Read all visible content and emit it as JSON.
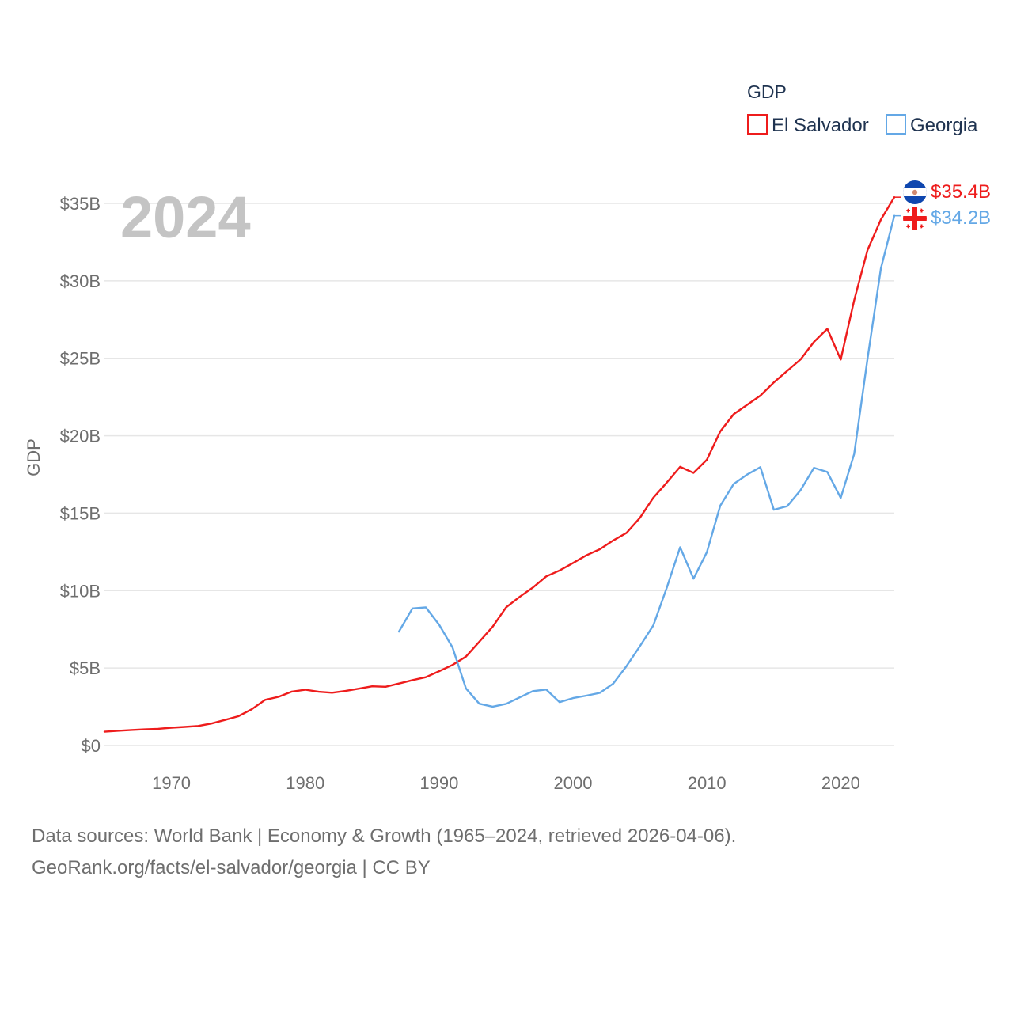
{
  "colors": {
    "el_salvador": "#ee1c1c",
    "georgia": "#64a8e6",
    "grid": "#e6e6e6",
    "tick": "#6e6e6e",
    "legend_text": "#1f3350",
    "year_watermark": "#c4c4c4"
  },
  "legend": {
    "title": "GDP",
    "items": [
      "El Salvador",
      "Georgia"
    ]
  },
  "current_year": "2024",
  "end_labels": {
    "el_salvador": "$35.4B",
    "georgia": "$34.2B"
  },
  "footer": {
    "line1": "Data sources: World Bank | Economy & Growth (1965–2024, retrieved 2026-04-06).",
    "line2": "GeoRank.org/facts/el-salvador/georgia | CC BY"
  },
  "chart_data": {
    "type": "line",
    "title": "",
    "xlabel": "",
    "ylabel": "GDP",
    "xlim": [
      1965,
      2024
    ],
    "ylim": [
      0,
      35
    ],
    "grid": true,
    "legend_position": "top-right",
    "x_ticks": [
      1970,
      1980,
      1990,
      2000,
      2010,
      2020
    ],
    "x_tick_labels": [
      "1970",
      "1980",
      "1990",
      "2000",
      "2010",
      "2020"
    ],
    "y_ticks": [
      0,
      5,
      10,
      15,
      20,
      25,
      30,
      35
    ],
    "y_tick_labels": [
      "$0",
      "$5B",
      "$10B",
      "$15B",
      "$20B",
      "$25B",
      "$30B",
      "$35B"
    ],
    "series": [
      {
        "name": "El Salvador",
        "key": "el_salvador",
        "x": [
          1965,
          1966,
          1967,
          1968,
          1969,
          1970,
          1971,
          1972,
          1973,
          1974,
          1975,
          1976,
          1977,
          1978,
          1979,
          1980,
          1981,
          1982,
          1983,
          1984,
          1985,
          1986,
          1987,
          1988,
          1989,
          1990,
          1991,
          1992,
          1993,
          1994,
          1995,
          1996,
          1997,
          1998,
          1999,
          2000,
          2001,
          2002,
          2003,
          2004,
          2005,
          2006,
          2007,
          2008,
          2009,
          2010,
          2011,
          2012,
          2013,
          2014,
          2015,
          2016,
          2017,
          2018,
          2019,
          2020,
          2021,
          2022,
          2023,
          2024
        ],
        "values": [
          0.89,
          0.95,
          1.0,
          1.04,
          1.08,
          1.15,
          1.2,
          1.26,
          1.42,
          1.65,
          1.89,
          2.34,
          2.95,
          3.14,
          3.48,
          3.6,
          3.47,
          3.41,
          3.52,
          3.67,
          3.82,
          3.79,
          4.0,
          4.22,
          4.41,
          4.8,
          5.2,
          5.74,
          6.7,
          7.67,
          8.92,
          9.59,
          10.2,
          10.92,
          11.3,
          11.78,
          12.28,
          12.67,
          13.24,
          13.73,
          14.7,
          16.0,
          16.97,
          17.99,
          17.6,
          18.45,
          20.28,
          21.39,
          21.99,
          22.59,
          23.44,
          24.19,
          24.93,
          26.06,
          26.9,
          24.92,
          28.74,
          31.99,
          33.96,
          35.4
        ]
      },
      {
        "name": "Georgia",
        "key": "georgia",
        "x": [
          1987,
          1988,
          1989,
          1990,
          1991,
          1992,
          1993,
          1994,
          1995,
          1996,
          1997,
          1998,
          1999,
          2000,
          2001,
          2002,
          2003,
          2004,
          2005,
          2006,
          2007,
          2008,
          2009,
          2010,
          2011,
          2012,
          2013,
          2014,
          2015,
          2016,
          2017,
          2018,
          2019,
          2020,
          2021,
          2022,
          2023,
          2024
        ],
        "values": [
          7.35,
          8.85,
          8.92,
          7.79,
          6.33,
          3.69,
          2.7,
          2.51,
          2.69,
          3.1,
          3.51,
          3.61,
          2.8,
          3.06,
          3.22,
          3.4,
          3.99,
          5.13,
          6.41,
          7.75,
          10.17,
          12.8,
          10.77,
          12.48,
          15.48,
          16.88,
          17.49,
          17.97,
          15.22,
          15.45,
          16.49,
          17.93,
          17.66,
          15.98,
          18.82,
          24.98,
          30.81,
          34.2
        ]
      }
    ]
  }
}
